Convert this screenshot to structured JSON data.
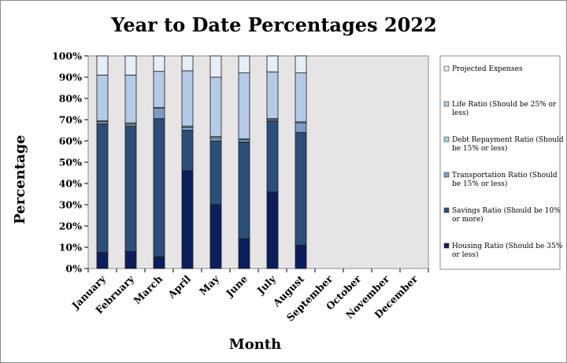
{
  "chart_data": {
    "type": "bar",
    "stacked": true,
    "title": "Year to Date Percentages 2022",
    "xlabel": "Month",
    "ylabel": "Percentage",
    "ylim": [
      0,
      100
    ],
    "yticks": [
      "0%",
      "10%",
      "20%",
      "30%",
      "40%",
      "50%",
      "60%",
      "70%",
      "80%",
      "90%",
      "100%"
    ],
    "categories": [
      "January",
      "February",
      "March",
      "April",
      "May",
      "June",
      "July",
      "August",
      "September",
      "October",
      "November",
      "December"
    ],
    "grid": false,
    "legend_position": "right",
    "series": [
      {
        "name": "Housing Ratio (Should be 35% or less)",
        "color": "#0c1f5c",
        "values": [
          7.5,
          8,
          5.5,
          46,
          30,
          14,
          36,
          11,
          null,
          null,
          null,
          null
        ]
      },
      {
        "name": "Savings Ratio (Should be 10% or more)",
        "color": "#2c4e7a",
        "values": [
          60.5,
          59,
          65,
          19,
          30,
          45.5,
          33.5,
          53,
          null,
          null,
          null,
          null
        ]
      },
      {
        "name": "Transportation Ratio (Should be 15% or less)",
        "color": "#7d9bc4",
        "values": [
          1,
          1,
          5,
          1.5,
          1.5,
          1,
          0.8,
          4.5,
          null,
          null,
          null,
          null
        ]
      },
      {
        "name": "Debt Repayment Ratio (Should be 15% or less)",
        "color": "#9fd3d8",
        "values": [
          0.5,
          0.5,
          0.2,
          0.5,
          0.5,
          0.5,
          0.2,
          0.5,
          null,
          null,
          null,
          null
        ]
      },
      {
        "name": "Life Ratio (Should be 25% or less)",
        "color": "#b4cbe7",
        "values": [
          21.5,
          22.5,
          17,
          26,
          28,
          31,
          22,
          23,
          null,
          null,
          null,
          null
        ]
      },
      {
        "name": "Projected Expenses",
        "color": "#e6eef8",
        "values": [
          9,
          9,
          7.3,
          7,
          10,
          8,
          7.5,
          8,
          null,
          null,
          null,
          null
        ]
      }
    ]
  }
}
